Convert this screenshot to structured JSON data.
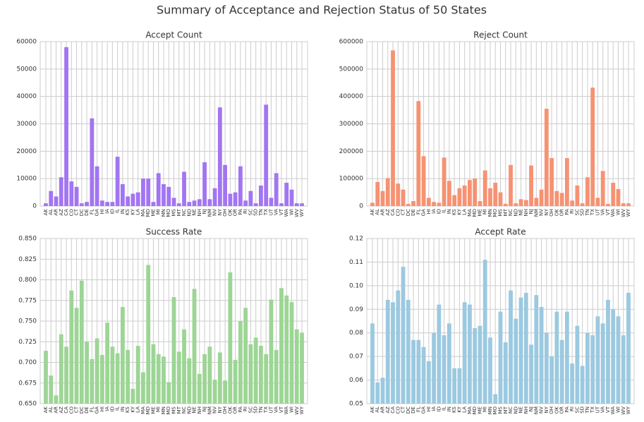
{
  "title": "Summary of Acceptance and Rejection Status of 50 States",
  "chart_data": [
    {
      "type": "bar",
      "title": "Accept Count",
      "color": "#a275f2",
      "grid": true,
      "categories": [
        "AK",
        "AL",
        "AR",
        "AZ",
        "CA",
        "CO",
        "CT",
        "DC",
        "DE",
        "FL",
        "GA",
        "HI",
        "IA",
        "ID",
        "IL",
        "IN",
        "KS",
        "KY",
        "LA",
        "MA",
        "MD",
        "ME",
        "MI",
        "MN",
        "MO",
        "MS",
        "MT",
        "NC",
        "ND",
        "NE",
        "NH",
        "NJ",
        "NM",
        "NV",
        "NY",
        "OH",
        "OK",
        "OR",
        "PA",
        "RI",
        "SC",
        "SD",
        "TN",
        "TX",
        "UT",
        "VA",
        "VT",
        "WA",
        "WI",
        "WV",
        "WY"
      ],
      "values": [
        1000,
        5500,
        3500,
        10500,
        58000,
        9000,
        7000,
        1000,
        1500,
        32000,
        14500,
        2000,
        1500,
        1500,
        18000,
        8000,
        3500,
        4500,
        5000,
        10000,
        10000,
        1500,
        12000,
        8000,
        7000,
        3000,
        1000,
        12500,
        1500,
        2000,
        2500,
        16000,
        2500,
        6500,
        36000,
        15000,
        4500,
        5000,
        14500,
        2000,
        5500,
        1000,
        7500,
        37000,
        3000,
        12000,
        1000,
        8500,
        6000,
        1000,
        1000
      ],
      "ylim": [
        0,
        60000
      ],
      "yticks": [
        0,
        10000,
        20000,
        30000,
        40000,
        50000,
        60000
      ]
    },
    {
      "type": "bar",
      "title": "Reject Count",
      "color": "#f69272",
      "grid": true,
      "categories": [
        "AK",
        "AL",
        "AR",
        "AZ",
        "CA",
        "CO",
        "CT",
        "DC",
        "DE",
        "FL",
        "GA",
        "HI",
        "IA",
        "ID",
        "IL",
        "IN",
        "KS",
        "KY",
        "LA",
        "MA",
        "MD",
        "ME",
        "MI",
        "MN",
        "MO",
        "MS",
        "MT",
        "NC",
        "ND",
        "NE",
        "NH",
        "NJ",
        "NM",
        "NV",
        "NY",
        "OH",
        "OK",
        "OR",
        "PA",
        "RI",
        "SC",
        "SD",
        "TN",
        "TX",
        "UT",
        "VA",
        "VT",
        "WA",
        "WI",
        "WV",
        "WY"
      ],
      "values": [
        12000,
        88000,
        55000,
        102000,
        568000,
        82000,
        60000,
        8000,
        18000,
        383000,
        182000,
        30000,
        15000,
        12000,
        177000,
        92000,
        40000,
        65000,
        75000,
        95000,
        100000,
        18000,
        130000,
        65000,
        85000,
        50000,
        8000,
        150000,
        10000,
        25000,
        22000,
        148000,
        30000,
        60000,
        355000,
        175000,
        55000,
        48000,
        175000,
        20000,
        75000,
        10000,
        105000,
        432000,
        30000,
        128000,
        8000,
        85000,
        62000,
        10000,
        10000
      ],
      "ylim": [
        0,
        600000
      ],
      "yticks": [
        0,
        100000,
        200000,
        300000,
        400000,
        500000,
        600000
      ]
    },
    {
      "type": "bar",
      "title": "Success Rate",
      "color": "#9dd595",
      "grid": true,
      "categories": [
        "AK",
        "AL",
        "AR",
        "AZ",
        "CA",
        "CO",
        "CT",
        "DC",
        "DE",
        "FL",
        "GA",
        "HI",
        "IA",
        "ID",
        "IL",
        "IN",
        "KS",
        "KY",
        "LA",
        "MA",
        "MD",
        "ME",
        "MI",
        "MN",
        "MO",
        "MS",
        "MT",
        "NC",
        "ND",
        "NE",
        "NH",
        "NJ",
        "NM",
        "NV",
        "NY",
        "OH",
        "OK",
        "OR",
        "PA",
        "RI",
        "SC",
        "SD",
        "TN",
        "TX",
        "UT",
        "VA",
        "VT",
        "WA",
        "WI",
        "WV",
        "WY"
      ],
      "values": [
        0.714,
        0.684,
        0.66,
        0.734,
        0.719,
        0.787,
        0.766,
        0.799,
        0.725,
        0.704,
        0.729,
        0.709,
        0.748,
        0.719,
        0.711,
        0.767,
        0.715,
        0.668,
        0.72,
        0.688,
        0.818,
        0.722,
        0.71,
        0.707,
        0.676,
        0.779,
        0.713,
        0.74,
        0.705,
        0.789,
        0.686,
        0.71,
        0.719,
        0.679,
        0.712,
        0.678,
        0.809,
        0.703,
        0.75,
        0.766,
        0.722,
        0.73,
        0.72,
        0.71,
        0.776,
        0.715,
        0.79,
        0.781,
        0.773,
        0.74,
        0.736
      ],
      "ylim": [
        0.65,
        0.85
      ],
      "yticks": [
        {
          "value": 0.65,
          "label": "0.650"
        },
        0.675,
        {
          "value": 0.7,
          "label": "0.700"
        },
        0.725,
        {
          "value": 0.75,
          "label": "0.750"
        },
        0.775,
        {
          "value": 0.8,
          "label": "0.800"
        },
        0.825,
        {
          "value": 0.85,
          "label": "0.850"
        }
      ]
    },
    {
      "type": "bar",
      "title": "Accept Rate",
      "color": "#9bc9e0",
      "grid": true,
      "categories": [
        "AK",
        "AL",
        "AR",
        "AZ",
        "CA",
        "CO",
        "CT",
        "DC",
        "DE",
        "FL",
        "GA",
        "HI",
        "IA",
        "ID",
        "IL",
        "IN",
        "KS",
        "KY",
        "LA",
        "MA",
        "MD",
        "ME",
        "MI",
        "MN",
        "MO",
        "MS",
        "MT",
        "NC",
        "ND",
        "NE",
        "NH",
        "NJ",
        "NM",
        "NV",
        "NY",
        "OH",
        "OK",
        "OR",
        "PA",
        "RI",
        "SC",
        "SD",
        "TN",
        "TX",
        "UT",
        "VA",
        "VT",
        "WA",
        "WI",
        "WV",
        "WY"
      ],
      "values": [
        0.084,
        0.059,
        0.061,
        0.094,
        0.093,
        0.098,
        0.108,
        0.094,
        0.077,
        0.077,
        0.074,
        0.068,
        0.08,
        0.092,
        0.079,
        0.084,
        0.065,
        0.065,
        0.093,
        0.092,
        0.082,
        0.083,
        0.111,
        0.078,
        0.054,
        0.089,
        0.076,
        0.098,
        0.086,
        0.095,
        0.097,
        0.075,
        0.096,
        0.091,
        0.08,
        0.07,
        0.089,
        0.077,
        0.089,
        0.067,
        0.083,
        0.066,
        0.08,
        0.079,
        0.087,
        0.084,
        0.094,
        0.09,
        0.087,
        0.079,
        0.097
      ],
      "ylim": [
        0.05,
        0.12
      ],
      "yticks": [
        0.05,
        0.06,
        0.07,
        0.08,
        0.09,
        {
          "value": 0.1,
          "label": "0.10"
        },
        0.11,
        0.12
      ]
    }
  ]
}
